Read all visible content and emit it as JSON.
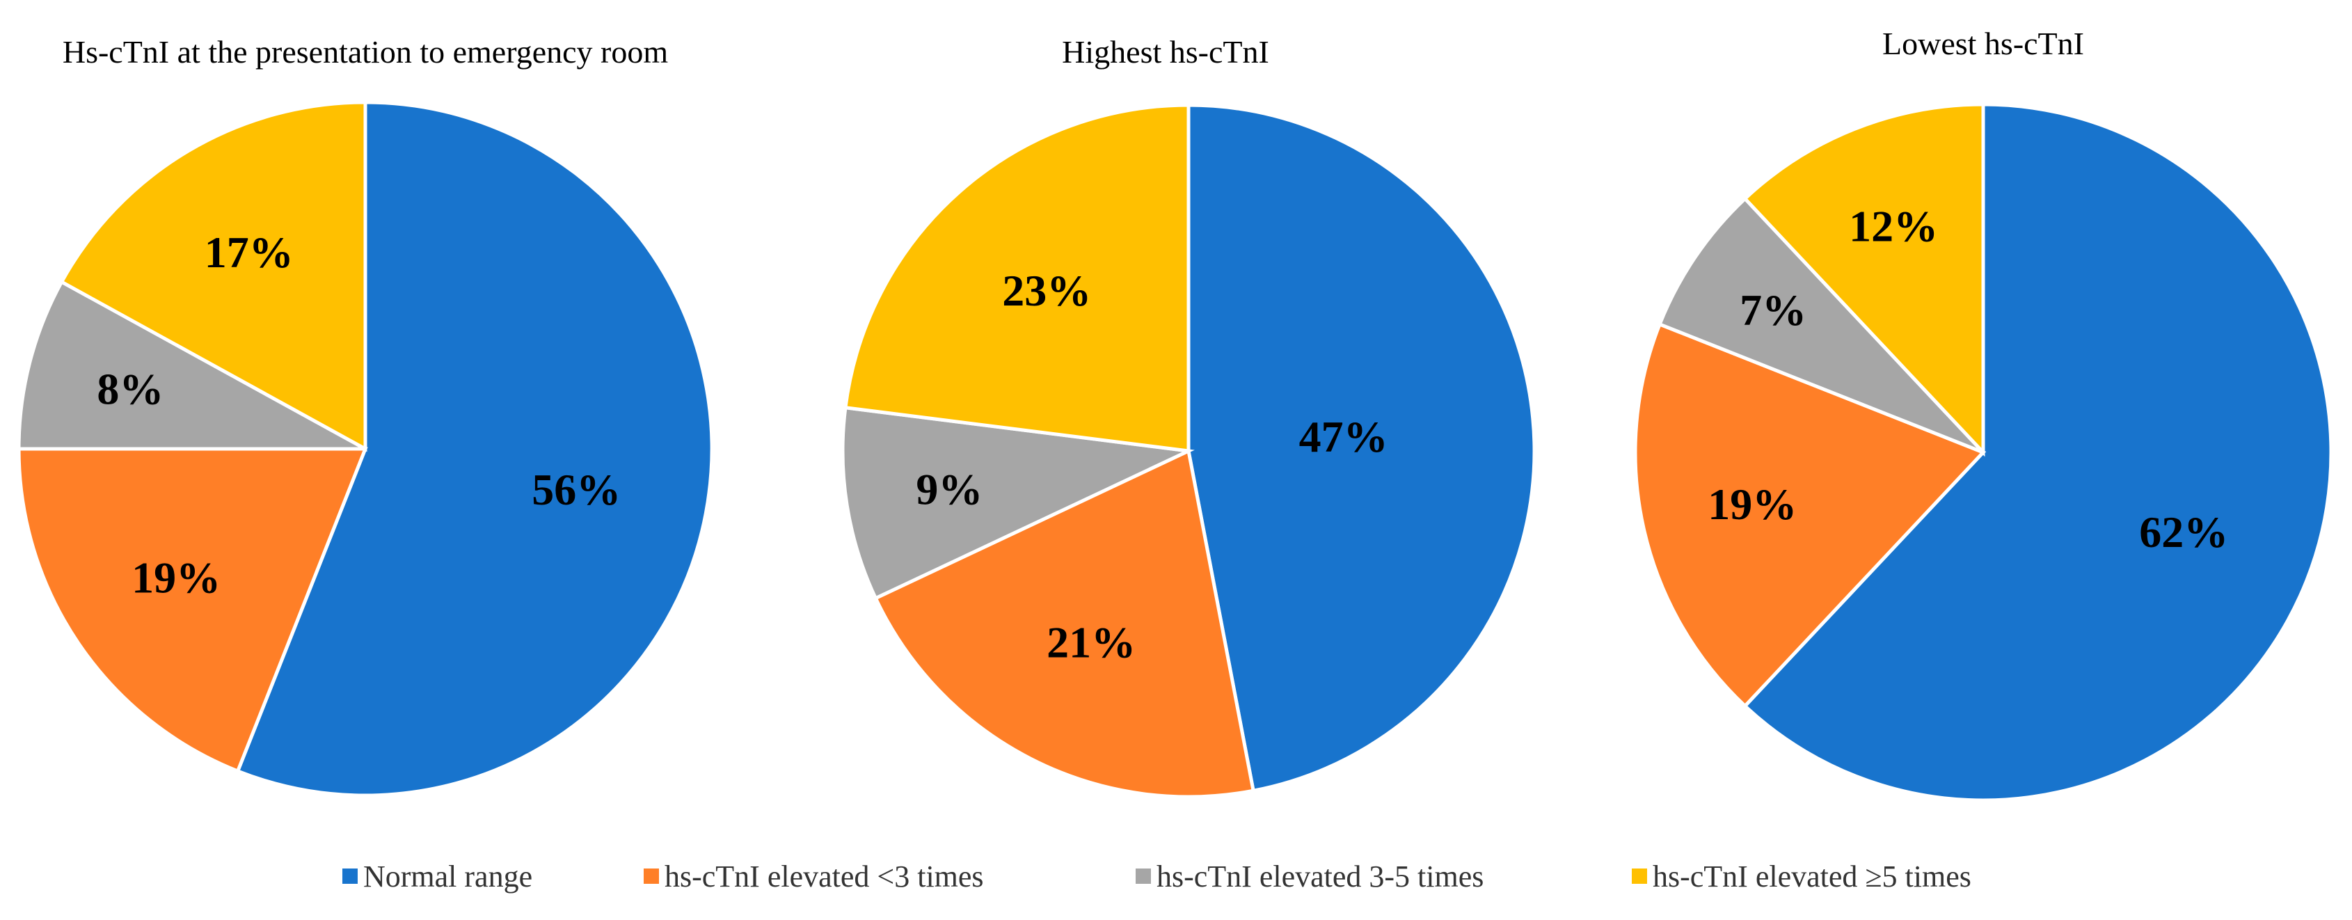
{
  "legend": [
    {
      "label": "Normal range",
      "color": "#1874CD"
    },
    {
      "label": "hs-cTnI elevated <3 times",
      "color": "#FF7F27"
    },
    {
      "label": "hs-cTnI elevated 3-5 times",
      "color": "#A6A6A6"
    },
    {
      "label": "hs-cTnI elevated ≥5 times",
      "color": "#FFC000"
    }
  ],
  "chart_data": [
    {
      "type": "pie",
      "title": "Hs-cTnI at the presentation to emergency room",
      "categories": [
        "Normal range",
        "hs-cTnI elevated <3 times",
        "hs-cTnI elevated 3-5 times",
        "hs-cTnI elevated ≥5 times"
      ],
      "values": [
        56,
        19,
        8,
        17
      ],
      "labels": [
        "56%",
        "19%",
        "8%",
        "17%"
      ]
    },
    {
      "type": "pie",
      "title": "Highest hs-cTnI",
      "categories": [
        "Normal range",
        "hs-cTnI elevated <3 times",
        "hs-cTnI elevated 3-5 times",
        "hs-cTnI elevated ≥5 times"
      ],
      "values": [
        47,
        21,
        9,
        23
      ],
      "labels": [
        "47%",
        "21%",
        "9%",
        "23%"
      ]
    },
    {
      "type": "pie",
      "title": "Lowest hs-cTnI",
      "categories": [
        "Normal range",
        "hs-cTnI elevated <3 times",
        "hs-cTnI elevated 3-5 times",
        "hs-cTnI elevated ≥5 times"
      ],
      "values": [
        62,
        19,
        7,
        12
      ],
      "labels": [
        "62%",
        "19%",
        "7%",
        "12%"
      ]
    }
  ]
}
